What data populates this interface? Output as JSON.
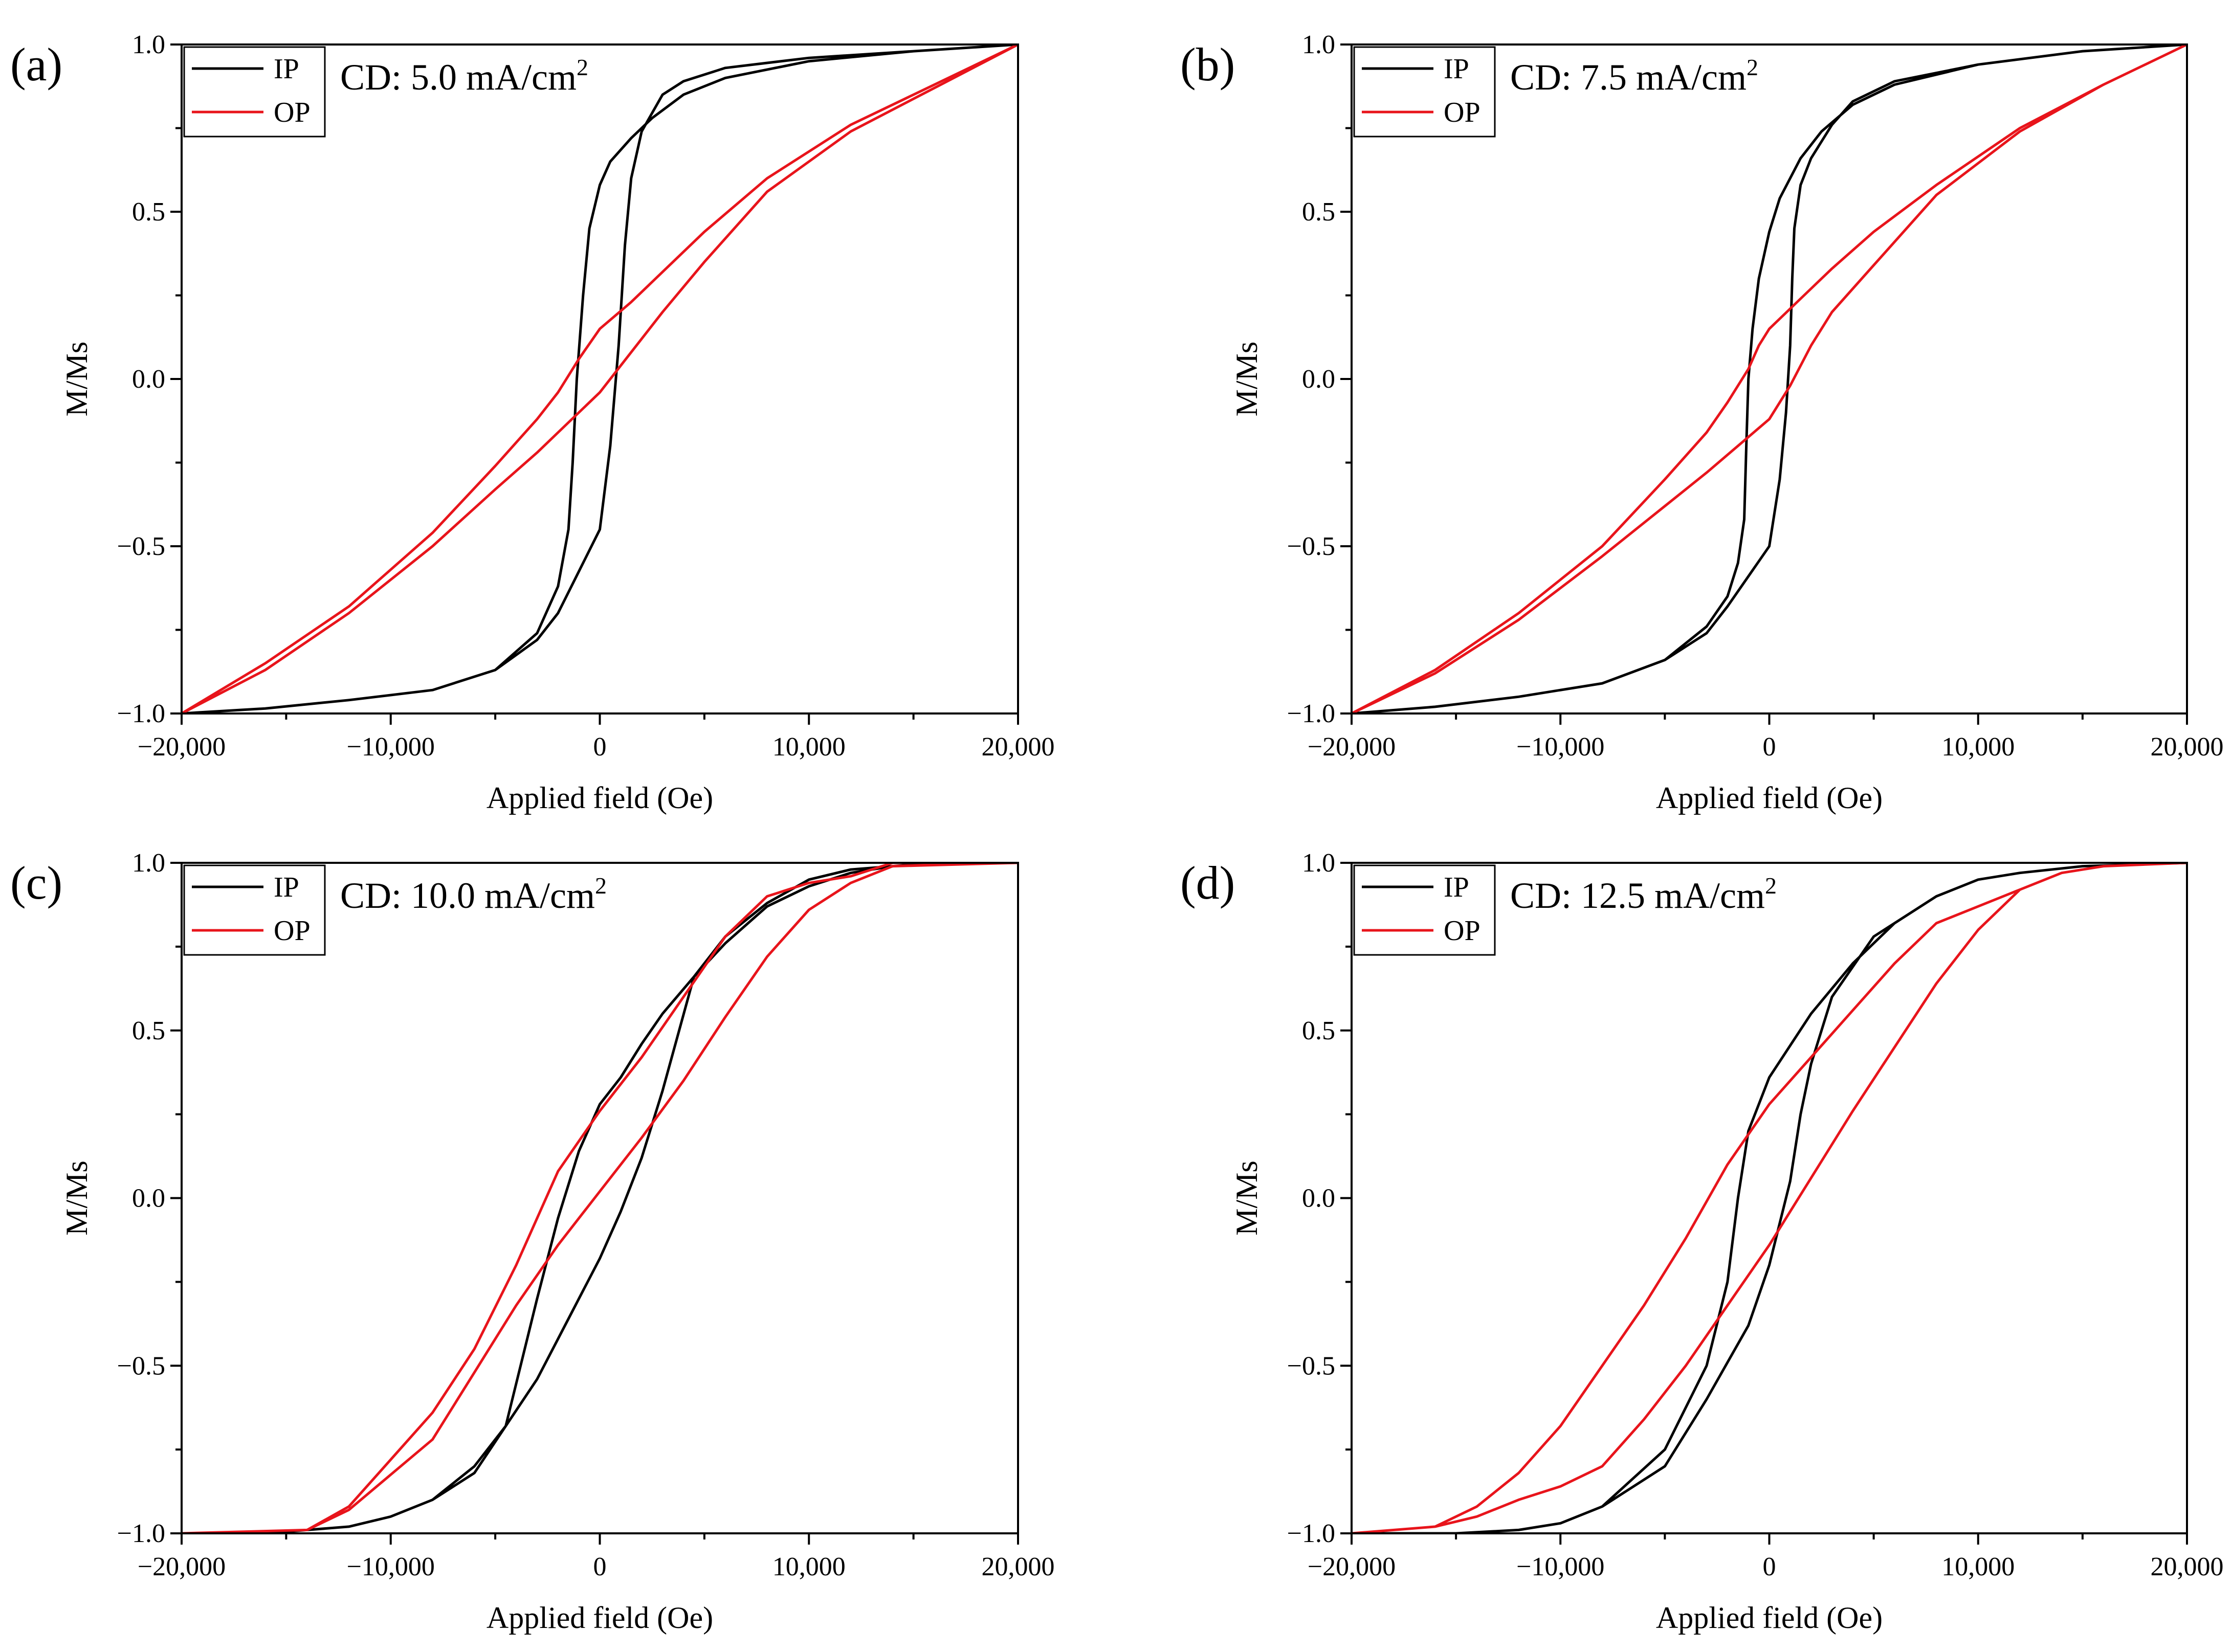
{
  "chart_data": [
    {
      "type": "line",
      "panel": "(a)",
      "annotation": {
        "prefix": "CD: 5.0 mA/cm",
        "sup": "2"
      },
      "xlabel": "Applied field (Oe)",
      "ylabel": "M/Ms",
      "xlim": [
        -20000,
        20000
      ],
      "ylim": [
        -1.0,
        1.0
      ],
      "xticks": [
        -20000,
        -10000,
        0,
        10000,
        20000
      ],
      "xtick_labels": [
        "−20,000",
        "−10,000",
        "0",
        "10,000",
        "20,000"
      ],
      "yticks": [
        1.0,
        0.5,
        0.0,
        -0.5,
        -1.0
      ],
      "ytick_labels": [
        "1.0",
        "0.5",
        "0.0",
        "−0.5",
        "−1.0"
      ],
      "legend": [
        {
          "label": "IP",
          "color": "#000000"
        },
        {
          "label": "OP",
          "color": "#e8141b"
        }
      ],
      "series": [
        {
          "name": "IP",
          "color": "#000000",
          "x": [
            20000,
            15000,
            10000,
            6000,
            4000,
            2500,
            1500,
            500,
            0,
            -500,
            -800,
            -1100,
            -1300,
            -1500,
            -2000,
            -3000,
            -5000,
            -8000,
            -12000,
            -16000,
            -20000,
            -16000,
            -12000,
            -8000,
            -5000,
            -3000,
            -2000,
            0,
            500,
            900,
            1200,
            1500,
            2000,
            3000,
            4000,
            6000,
            10000,
            15000,
            20000
          ],
          "y": [
            1.0,
            0.98,
            0.95,
            0.9,
            0.85,
            0.78,
            0.72,
            0.65,
            0.58,
            0.45,
            0.25,
            0.0,
            -0.25,
            -0.45,
            -0.62,
            -0.76,
            -0.87,
            -0.93,
            -0.96,
            -0.985,
            -1.0,
            -0.985,
            -0.96,
            -0.93,
            -0.87,
            -0.78,
            -0.7,
            -0.45,
            -0.2,
            0.1,
            0.4,
            0.6,
            0.74,
            0.85,
            0.89,
            0.93,
            0.96,
            0.98,
            1.0
          ]
        },
        {
          "name": "OP",
          "color": "#e8141b",
          "x": [
            20000,
            16000,
            12000,
            8000,
            5000,
            3000,
            1500,
            0,
            -1000,
            -2000,
            -3000,
            -5000,
            -8000,
            -12000,
            -16000,
            -20000,
            -16000,
            -12000,
            -8000,
            -5000,
            -3000,
            -1500,
            0,
            1500,
            3000,
            5000,
            8000,
            12000,
            16000,
            20000
          ],
          "y": [
            1.0,
            0.88,
            0.76,
            0.6,
            0.44,
            0.32,
            0.23,
            0.15,
            0.06,
            -0.04,
            -0.12,
            -0.26,
            -0.46,
            -0.68,
            -0.85,
            -1.0,
            -0.87,
            -0.7,
            -0.5,
            -0.33,
            -0.22,
            -0.13,
            -0.04,
            0.08,
            0.2,
            0.35,
            0.56,
            0.74,
            0.87,
            1.0
          ]
        }
      ]
    },
    {
      "type": "line",
      "panel": "(b)",
      "annotation": {
        "prefix": "CD: 7.5 mA/cm",
        "sup": "2"
      },
      "xlabel": "Applied field (Oe)",
      "ylabel": "M/Ms",
      "xlim": [
        -20000,
        20000
      ],
      "ylim": [
        -1.0,
        1.0
      ],
      "xticks": [
        -20000,
        -10000,
        0,
        10000,
        20000
      ],
      "xtick_labels": [
        "−20,000",
        "−10,000",
        "0",
        "10,000",
        "20,000"
      ],
      "yticks": [
        1.0,
        0.5,
        0.0,
        -0.5,
        -1.0
      ],
      "ytick_labels": [
        "1.0",
        "0.5",
        "0.0",
        "−0.5",
        "−1.0"
      ],
      "legend": [
        {
          "label": "IP",
          "color": "#000000"
        },
        {
          "label": "OP",
          "color": "#e8141b"
        }
      ],
      "series": [
        {
          "name": "IP",
          "color": "#000000",
          "x": [
            20000,
            15000,
            10000,
            6000,
            4000,
            2500,
            1500,
            500,
            0,
            -500,
            -800,
            -1000,
            -1100,
            -1200,
            -1500,
            -2000,
            -3000,
            -5000,
            -8000,
            -12000,
            -16000,
            -20000,
            -16000,
            -12000,
            -8000,
            -5000,
            -3000,
            -2000,
            0,
            500,
            800,
            1000,
            1100,
            1200,
            1500,
            2000,
            3000,
            4000,
            6000,
            10000,
            15000,
            20000
          ],
          "y": [
            1.0,
            0.98,
            0.94,
            0.88,
            0.82,
            0.74,
            0.66,
            0.54,
            0.44,
            0.3,
            0.15,
            0.0,
            -0.2,
            -0.42,
            -0.55,
            -0.65,
            -0.74,
            -0.84,
            -0.91,
            -0.95,
            -0.98,
            -1.0,
            -0.98,
            -0.95,
            -0.91,
            -0.84,
            -0.76,
            -0.68,
            -0.5,
            -0.3,
            -0.1,
            0.1,
            0.3,
            0.45,
            0.58,
            0.66,
            0.76,
            0.83,
            0.89,
            0.94,
            0.98,
            1.0
          ]
        },
        {
          "name": "OP",
          "color": "#e8141b",
          "x": [
            20000,
            16000,
            12000,
            8000,
            5000,
            3000,
            1500,
            0,
            -500,
            -1000,
            -2000,
            -3000,
            -5000,
            -8000,
            -12000,
            -16000,
            -20000,
            -16000,
            -12000,
            -8000,
            -5000,
            -3000,
            -1500,
            0,
            1000,
            2000,
            3000,
            5000,
            8000,
            12000,
            16000,
            20000
          ],
          "y": [
            1.0,
            0.88,
            0.75,
            0.58,
            0.44,
            0.33,
            0.24,
            0.15,
            0.1,
            0.03,
            -0.07,
            -0.16,
            -0.3,
            -0.5,
            -0.7,
            -0.87,
            -1.0,
            -0.88,
            -0.72,
            -0.53,
            -0.38,
            -0.28,
            -0.2,
            -0.12,
            -0.02,
            0.1,
            0.2,
            0.34,
            0.55,
            0.74,
            0.88,
            1.0
          ]
        }
      ]
    },
    {
      "type": "line",
      "panel": "(c)",
      "annotation": {
        "prefix": "CD: 10.0 mA/cm",
        "sup": "2"
      },
      "xlabel": "Applied field (Oe)",
      "ylabel": "M/Ms",
      "xlim": [
        -20000,
        20000
      ],
      "ylim": [
        -1.0,
        1.0
      ],
      "xticks": [
        -20000,
        -10000,
        0,
        10000,
        20000
      ],
      "xtick_labels": [
        "−20,000",
        "−10,000",
        "0",
        "10,000",
        "20,000"
      ],
      "yticks": [
        1.0,
        0.5,
        0.0,
        -0.5,
        -1.0
      ],
      "ytick_labels": [
        "1.0",
        "0.5",
        "0.0",
        "−0.5",
        "−1.0"
      ],
      "legend": [
        {
          "label": "IP",
          "color": "#000000"
        },
        {
          "label": "OP",
          "color": "#e8141b"
        }
      ],
      "series": [
        {
          "name": "IP",
          "color": "#000000",
          "x": [
            20000,
            16000,
            14000,
            12000,
            10000,
            8000,
            6000,
            4500,
            3000,
            2000,
            1000,
            0,
            -1000,
            -2000,
            -3000,
            -4500,
            -6000,
            -8000,
            -10000,
            -12000,
            -14000,
            -16000,
            -20000,
            -16000,
            -14000,
            -12000,
            -10000,
            -8000,
            -6000,
            -4500,
            -3000,
            -2000,
            -1000,
            0,
            1000,
            2000,
            3000,
            4500,
            6000,
            8000,
            10000,
            12000,
            14000,
            16000,
            20000
          ],
          "y": [
            1.0,
            1.0,
            0.99,
            0.97,
            0.93,
            0.87,
            0.76,
            0.66,
            0.55,
            0.46,
            0.36,
            0.28,
            0.14,
            -0.06,
            -0.3,
            -0.68,
            -0.82,
            -0.9,
            -0.95,
            -0.98,
            -0.99,
            -1.0,
            -1.0,
            -1.0,
            -0.99,
            -0.98,
            -0.95,
            -0.9,
            -0.8,
            -0.68,
            -0.54,
            -0.42,
            -0.3,
            -0.18,
            -0.04,
            0.12,
            0.32,
            0.66,
            0.78,
            0.88,
            0.95,
            0.98,
            0.99,
            1.0,
            1.0
          ]
        },
        {
          "name": "OP",
          "color": "#e8141b",
          "x": [
            20000,
            14000,
            12000,
            10000,
            8000,
            6000,
            4000,
            2000,
            0,
            -2000,
            -4000,
            -6000,
            -8000,
            -10000,
            -12000,
            -14000,
            -20000,
            -14000,
            -12000,
            -8000,
            -6000,
            -4000,
            -2000,
            0,
            2000,
            4000,
            6000,
            8000,
            10000,
            12000,
            14000,
            20000
          ],
          "y": [
            1.0,
            1.0,
            0.96,
            0.94,
            0.9,
            0.78,
            0.6,
            0.42,
            0.26,
            0.08,
            -0.2,
            -0.45,
            -0.64,
            -0.78,
            -0.92,
            -0.99,
            -1.0,
            -0.99,
            -0.93,
            -0.72,
            -0.52,
            -0.32,
            -0.14,
            0.02,
            0.18,
            0.35,
            0.54,
            0.72,
            0.86,
            0.94,
            0.99,
            1.0
          ]
        }
      ]
    },
    {
      "type": "line",
      "panel": "(d)",
      "annotation": {
        "prefix": "CD: 12.5 mA/cm",
        "sup": "2"
      },
      "xlabel": "Applied field (Oe)",
      "ylabel": "M/Ms",
      "xlim": [
        -20000,
        20000
      ],
      "ylim": [
        -1.0,
        1.0
      ],
      "xticks": [
        -20000,
        -10000,
        0,
        10000,
        20000
      ],
      "xtick_labels": [
        "−20,000",
        "−10,000",
        "0",
        "10,000",
        "20,000"
      ],
      "yticks": [
        1.0,
        0.5,
        0.0,
        -0.5,
        -1.0
      ],
      "ytick_labels": [
        "1.0",
        "0.5",
        "0.0",
        "−0.5",
        "−1.0"
      ],
      "legend": [
        {
          "label": "IP",
          "color": "#000000"
        },
        {
          "label": "OP",
          "color": "#e8141b"
        }
      ],
      "series": [
        {
          "name": "IP",
          "color": "#000000",
          "x": [
            20000,
            15000,
            12000,
            10000,
            8000,
            6000,
            4000,
            2000,
            0,
            -1000,
            -1500,
            -2000,
            -3000,
            -5000,
            -8000,
            -10000,
            -12000,
            -15000,
            -20000,
            -15000,
            -12000,
            -10000,
            -8000,
            -5000,
            -3000,
            -1000,
            0,
            1000,
            1500,
            2000,
            3000,
            5000,
            8000,
            10000,
            12000,
            15000,
            20000
          ],
          "y": [
            1.0,
            0.99,
            0.97,
            0.95,
            0.9,
            0.82,
            0.7,
            0.55,
            0.36,
            0.2,
            0.0,
            -0.25,
            -0.5,
            -0.75,
            -0.92,
            -0.97,
            -0.99,
            -1.0,
            -1.0,
            -1.0,
            -0.99,
            -0.97,
            -0.92,
            -0.8,
            -0.6,
            -0.38,
            -0.2,
            0.05,
            0.25,
            0.4,
            0.6,
            0.78,
            0.9,
            0.95,
            0.97,
            0.99,
            1.0
          ]
        },
        {
          "name": "OP",
          "color": "#e8141b",
          "x": [
            20000,
            16000,
            14000,
            12000,
            10000,
            8000,
            6000,
            4000,
            2000,
            0,
            -2000,
            -4000,
            -6000,
            -8000,
            -10000,
            -12000,
            -14000,
            -16000,
            -20000,
            -16000,
            -14000,
            -12000,
            -10000,
            -8000,
            -6000,
            -4000,
            -2000,
            0,
            2000,
            4000,
            6000,
            8000,
            10000,
            12000,
            14000,
            16000,
            20000
          ],
          "y": [
            1.0,
            0.99,
            0.97,
            0.92,
            0.87,
            0.82,
            0.7,
            0.56,
            0.42,
            0.28,
            0.1,
            -0.12,
            -0.32,
            -0.5,
            -0.68,
            -0.82,
            -0.92,
            -0.98,
            -1.0,
            -0.98,
            -0.95,
            -0.9,
            -0.86,
            -0.8,
            -0.66,
            -0.5,
            -0.32,
            -0.14,
            0.06,
            0.26,
            0.45,
            0.64,
            0.8,
            0.92,
            0.97,
            0.99,
            1.0
          ]
        }
      ]
    }
  ]
}
